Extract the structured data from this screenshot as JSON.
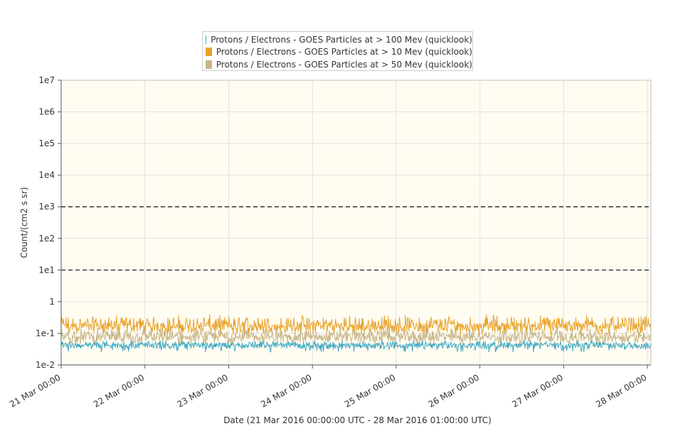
{
  "chart_data": {
    "type": "line",
    "title": "",
    "xlabel": "Date (21 Mar 2016 00:00:00 UTC - 28 Mar 2016 01:00:00 UTC)",
    "ylabel": "Count/(cm2 s sr)",
    "y_scale": "log",
    "ylim": [
      0.01,
      10000000
    ],
    "xlim": [
      "2016-03-21 00:00",
      "2016-03-28 01:00"
    ],
    "x_tick_labels": [
      "21 Mar 00:00",
      "22 Mar 00:00",
      "23 Mar 00:00",
      "24 Mar 00:00",
      "25 Mar 00:00",
      "26 Mar 00:00",
      "27 Mar 00:00",
      "28 Mar 00:00"
    ],
    "y_tick_labels": [
      "1e7",
      "1e6",
      "1e5",
      "1e4",
      "1e3",
      "1e2",
      "1e1",
      "1",
      "1e-1",
      "1e-2"
    ],
    "y_tick_values": [
      10000000,
      1000000,
      100000,
      10000,
      1000,
      100,
      10,
      1,
      0.1,
      0.01
    ],
    "grid": true,
    "background_color": "#fffcf2",
    "legend_position": "top-center",
    "threshold_lines": [
      {
        "value": 1000,
        "style": "dashed"
      },
      {
        "value": 10,
        "style": "dashed"
      }
    ],
    "series": [
      {
        "name": "Protons / Electrons - GOES Particles at > 100 Mev (quicklook)",
        "color": "#3fa9c2",
        "typical_value": 0.04,
        "range": [
          0.025,
          0.06
        ]
      },
      {
        "name": "Protons / Electrons - GOES Particles at > 10 Mev (quicklook)",
        "color": "#e8a32c",
        "typical_value": 0.15,
        "range": [
          0.08,
          0.4
        ]
      },
      {
        "name": "Protons / Electrons - GOES Particles at > 50 Mev (quicklook)",
        "color": "#c8b68a",
        "typical_value": 0.07,
        "range": [
          0.04,
          0.15
        ]
      }
    ]
  }
}
